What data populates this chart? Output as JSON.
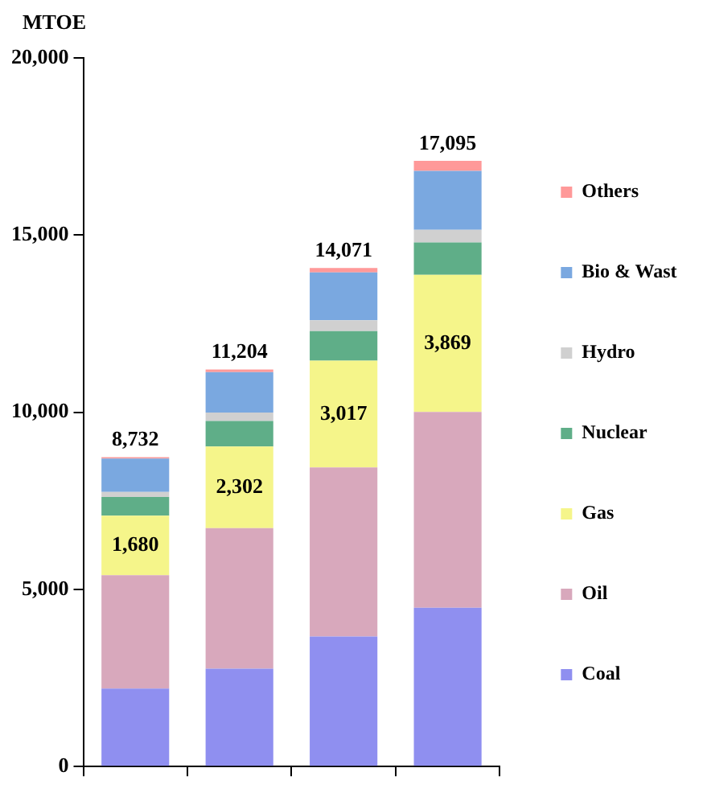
{
  "chart_data": {
    "type": "bar",
    "stacked": true,
    "ylabel": "MTOE",
    "categories": [
      null,
      null,
      null,
      null
    ],
    "series": [
      {
        "name": "Coal",
        "color": "#8f8ff0",
        "values": [
          2200,
          2760,
          3670,
          4480
        ]
      },
      {
        "name": "Oil",
        "color": "#d8a8bc",
        "values": [
          3200,
          3970,
          4770,
          5530
        ]
      },
      {
        "name": "Gas",
        "color": "#f5f58a",
        "values": [
          1680,
          2302,
          3017,
          3869
        ],
        "value_labels": [
          "1,680",
          "2,302",
          "3,017",
          "3,869"
        ]
      },
      {
        "name": "Nuclear",
        "color": "#5fae88",
        "values": [
          530,
          720,
          830,
          910
        ]
      },
      {
        "name": "Hydro",
        "color": "#d0d0d0",
        "values": [
          140,
          240,
          310,
          360
        ]
      },
      {
        "name": "Bio & Wast",
        "color": "#7aa8e0",
        "values": [
          940,
          1140,
          1350,
          1660
        ]
      },
      {
        "name": "Others",
        "color": "#ff9999",
        "values": [
          42,
          72,
          124,
          286
        ]
      }
    ],
    "totals": [
      "8,732",
      "11,204",
      "14,071",
      "17,095"
    ],
    "ylim": [
      0,
      20000
    ],
    "yticks": [
      0,
      {
        "value": 5000,
        "label": "5,000"
      },
      {
        "value": 10000,
        "label": "10,000"
      },
      {
        "value": 15000,
        "label": "15,000"
      },
      {
        "value": 20000,
        "label": "20,000"
      }
    ],
    "grid": false,
    "legend": "right"
  }
}
